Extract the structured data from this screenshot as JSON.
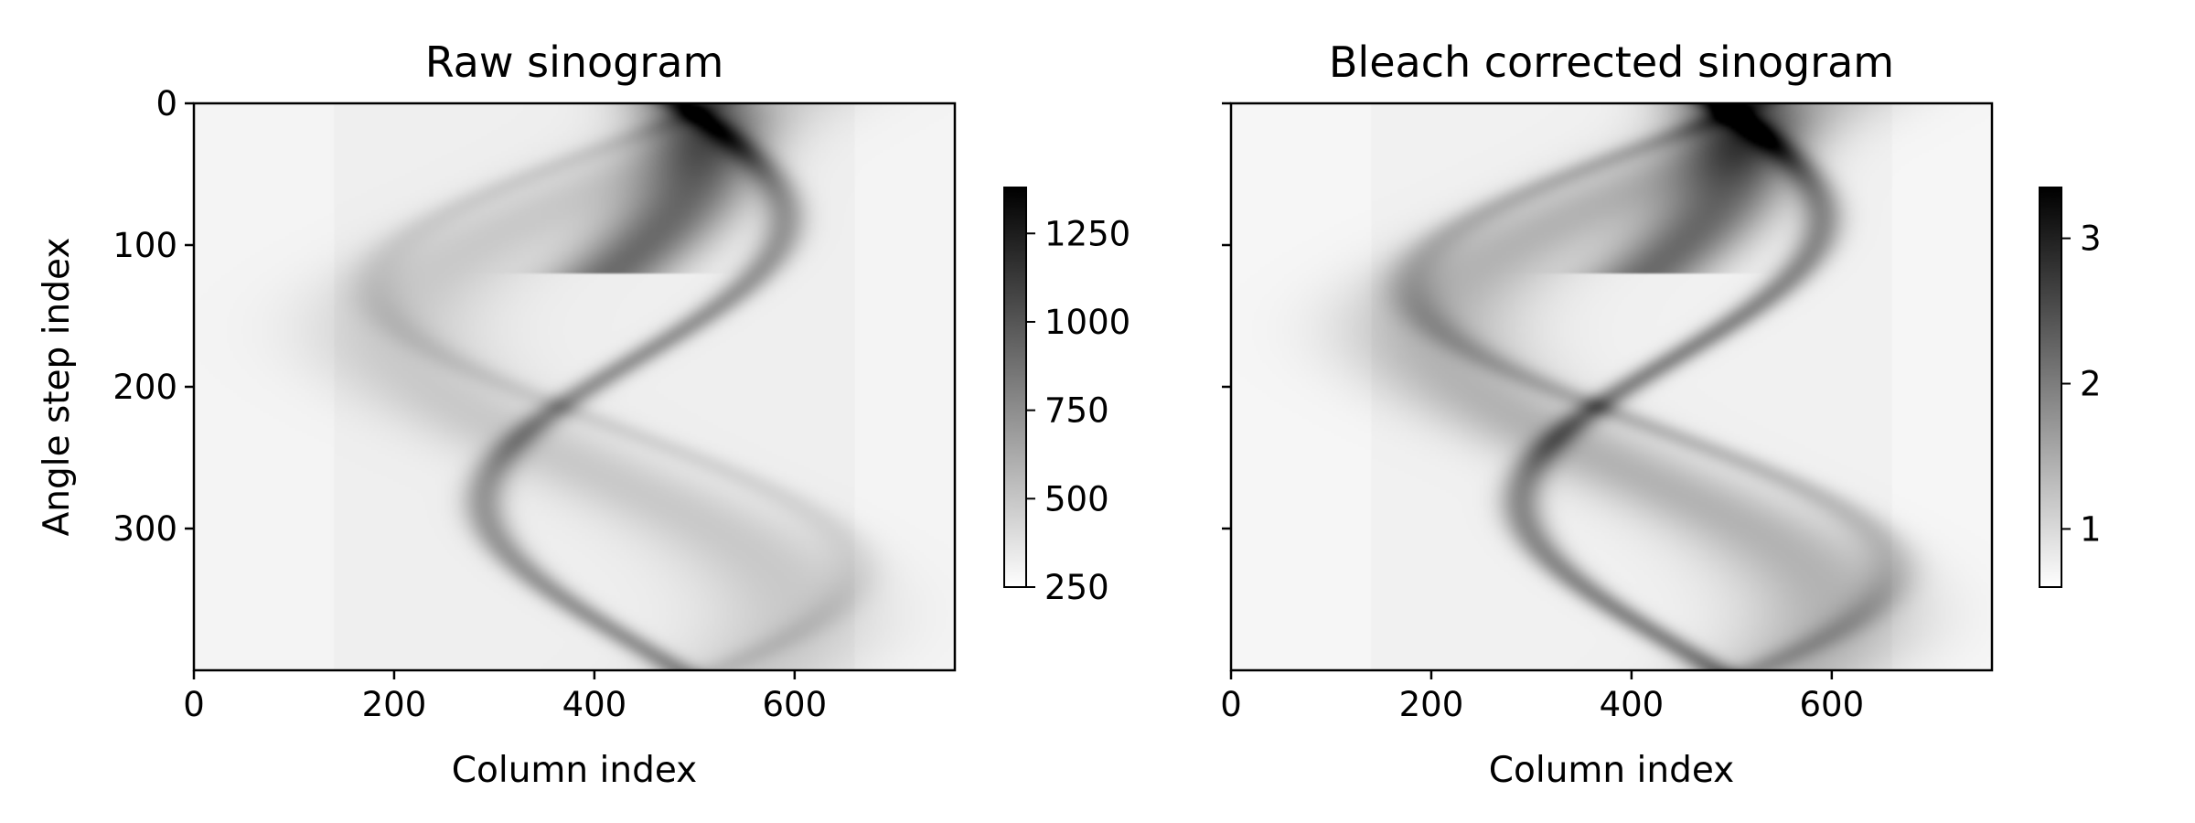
{
  "chart_data": [
    {
      "type": "heatmap",
      "title": "Raw sinogram",
      "xlabel": "Column index",
      "ylabel": "Angle step index",
      "xlim": [
        0,
        760
      ],
      "ylim": [
        400,
        0
      ],
      "xticks": [
        0,
        200,
        400,
        600
      ],
      "yticks": [
        0,
        100,
        200,
        300
      ],
      "colormap": "gray_r",
      "colorbar": {
        "vmin": 250,
        "vmax": 1380,
        "ticks": [
          250,
          500,
          750,
          1000,
          1250
        ]
      },
      "background_value": 300,
      "traces": [
        {
          "center": 400,
          "amplitude": 110,
          "phase": 1.1,
          "width": 60,
          "peak": 1350,
          "top_end": 120
        },
        {
          "center": 440,
          "amplitude": 150,
          "phase": 0.3,
          "width": 22,
          "peak": 1000,
          "top_end": 400
        },
        {
          "center": 400,
          "amplitude": 200,
          "phase": 2.2,
          "width": 90,
          "peak": 600,
          "top_end": 400
        },
        {
          "center": 420,
          "amplitude": 240,
          "phase": 2.7,
          "width": 28,
          "peak": 480,
          "top_end": 400
        }
      ]
    },
    {
      "type": "heatmap",
      "title": "Bleach corrected sinogram",
      "xlabel": "Column index",
      "ylabel": "",
      "xlim": [
        0,
        760
      ],
      "ylim": [
        400,
        0
      ],
      "xticks": [
        0,
        200,
        400,
        600
      ],
      "yticks": [
        0,
        100,
        200,
        300
      ],
      "colormap": "gray_r",
      "colorbar": {
        "vmin": 0.6,
        "vmax": 3.35,
        "ticks": [
          1,
          2,
          3
        ]
      },
      "background_value": 0.7,
      "traces": [
        {
          "center": 400,
          "amplitude": 110,
          "phase": 1.1,
          "width": 60,
          "peak": 3.3,
          "top_end": 120
        },
        {
          "center": 440,
          "amplitude": 150,
          "phase": 0.3,
          "width": 22,
          "peak": 2.7,
          "top_end": 400
        },
        {
          "center": 400,
          "amplitude": 200,
          "phase": 2.2,
          "width": 90,
          "peak": 1.9,
          "top_end": 400
        },
        {
          "center": 420,
          "amplitude": 240,
          "phase": 2.7,
          "width": 28,
          "peak": 1.6,
          "top_end": 400
        }
      ]
    }
  ]
}
